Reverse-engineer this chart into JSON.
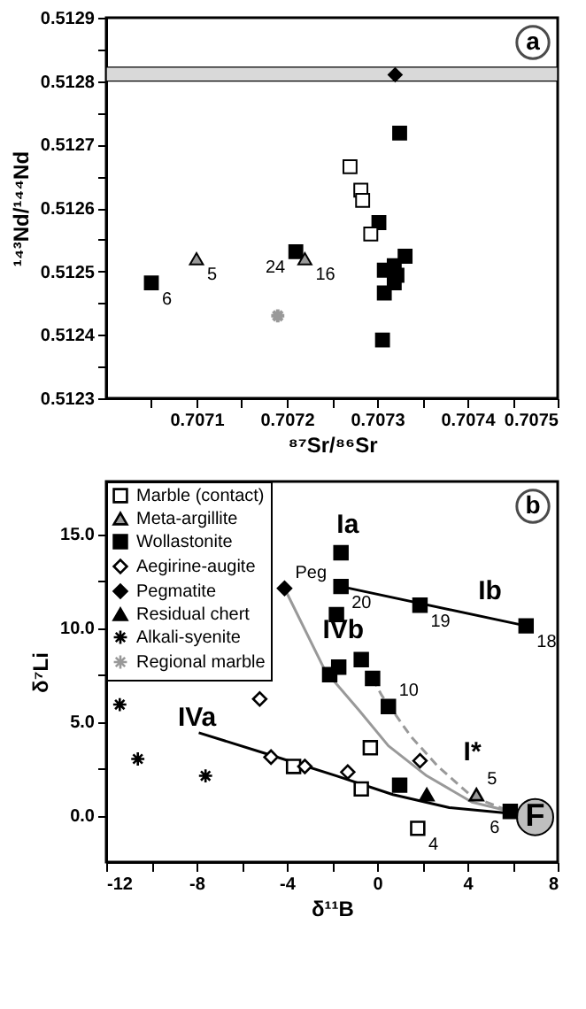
{
  "chart_data": [
    {
      "type": "scatter",
      "xlabel": "⁸⁷Sr/⁸⁶Sr",
      "ylabel": "¹⁴³Nd/¹⁴⁴Nd",
      "xlim": [
        0.707,
        0.7075
      ],
      "ylim": [
        0.5123,
        0.5129
      ],
      "xticks": [
        {
          "value": 0.70705,
          "label": null
        },
        0.7071,
        {
          "value": 0.70715,
          "label": null
        },
        0.7072,
        {
          "value": 0.70725,
          "label": null
        },
        0.7073,
        {
          "value": 0.70735,
          "label": null
        },
        0.7074,
        {
          "value": 0.70745,
          "label": null
        },
        0.7075
      ],
      "yticks": [
        0.5123,
        {
          "value": 0.51235,
          "label": null
        },
        0.5124,
        {
          "value": 0.51245,
          "label": null
        },
        0.5125,
        {
          "value": 0.51255,
          "label": null
        },
        0.5126,
        {
          "value": 0.51265,
          "label": null
        },
        0.5127,
        {
          "value": 0.51275,
          "label": null
        },
        0.5128,
        {
          "value": 0.51285,
          "label": null
        },
        0.5129
      ],
      "grid": false,
      "legend": false,
      "bands": [
        {
          "axis": "y",
          "from": 0.5128,
          "to": 0.512822,
          "color": "#d9d9d9"
        }
      ],
      "series": [
        {
          "marker": "diamond",
          "color": "#000000",
          "x": [
            0.70732
          ],
          "values": [
            0.51281
          ]
        },
        {
          "marker": "square",
          "color": "#000000",
          "x": [
            0.707325,
            0.707302,
            0.707331,
            0.707308,
            0.707319,
            0.707322,
            0.707319,
            0.707308,
            0.707306,
            0.70721,
            0.70705
          ],
          "values": [
            0.512718,
            0.512577,
            0.512524,
            0.512502,
            0.512509,
            0.512494,
            0.512482,
            0.512466,
            0.512392,
            0.512531,
            0.512482
          ]
        },
        {
          "marker": "square",
          "color": "#ffffff",
          "x": [
            0.70727,
            0.707282,
            0.707284,
            0.707293
          ],
          "values": [
            0.512665,
            0.512628,
            0.512612,
            0.512559
          ]
        },
        {
          "marker": "triangle",
          "color": "#999999",
          "x": [
            0.7071,
            0.70722
          ],
          "values": [
            0.51252,
            0.51252
          ]
        },
        {
          "marker": "cross",
          "color": "#999999",
          "x": [
            0.70719
          ],
          "values": [
            0.51243
          ]
        }
      ],
      "annotations": [
        "a",
        {
          "text": "24",
          "x": 0.70721,
          "y": 0.512531
        },
        {
          "text": "16",
          "x": 0.70722,
          "y": 0.51252
        },
        {
          "text": "5",
          "x": 0.7071,
          "y": 0.51252
        },
        {
          "text": "6",
          "x": 0.70705,
          "y": 0.512482
        }
      ]
    },
    {
      "type": "scatter",
      "xlabel": "δ¹¹B",
      "ylabel": "δ⁷Li",
      "xlim": [
        -12,
        8
      ],
      "ylim": [
        -2.5,
        17.8
      ],
      "xticks": [
        -12,
        {
          "value": -10,
          "label": null
        },
        -8,
        {
          "value": -6,
          "label": null
        },
        -4,
        {
          "value": -2,
          "label": null
        },
        0,
        {
          "value": 2,
          "label": null
        },
        4,
        {
          "value": 6,
          "label": null
        },
        8
      ],
      "yticks": [
        {
          "value": 0,
          "label": "0.0"
        },
        {
          "value": 2.5,
          "label": null
        },
        {
          "value": 5,
          "label": "5.0"
        },
        {
          "value": 7.5,
          "label": null
        },
        {
          "value": 10,
          "label": "10.0"
        },
        {
          "value": 12.5,
          "label": null
        },
        {
          "value": 15,
          "label": "15.0"
        }
      ],
      "grid": false,
      "legend": "top left",
      "series": [
        {
          "name": "Marble (contact)",
          "marker": "square",
          "color": "#ffffff",
          "x": [
            -0.3,
            -3.7,
            -0.7,
            1.8
          ],
          "values": [
            3.6,
            2.6,
            1.4,
            -0.7
          ]
        },
        {
          "name": "Meta-argillite",
          "marker": "triangle",
          "color": "#999999",
          "x": [
            4.4
          ],
          "values": [
            1.1
          ]
        },
        {
          "name": "Wollastonite",
          "marker": "square",
          "color": "#000000",
          "x": [
            -1.6,
            -1.6,
            -1.8,
            1.9,
            6.6,
            -2.1,
            -1.7,
            -0.7,
            -0.2,
            0.5,
            1.0,
            5.9
          ],
          "values": [
            14.0,
            12.2,
            10.7,
            11.2,
            10.1,
            7.5,
            7.9,
            8.3,
            7.3,
            5.8,
            1.6,
            0.2
          ]
        },
        {
          "name": "Aegirine-augite",
          "marker": "diamond",
          "color": "#ffffff",
          "x": [
            -5.2,
            -4.7,
            -3.2,
            -1.3,
            1.9
          ],
          "values": [
            6.2,
            3.1,
            2.6,
            2.3,
            2.9
          ]
        },
        {
          "name": "Pegmatite",
          "marker": "diamond",
          "color": "#000000",
          "x": [
            -4.1
          ],
          "values": [
            12.1
          ]
        },
        {
          "name": "Residual chert",
          "marker": "triangle",
          "color": "#000000",
          "x": [
            2.2
          ],
          "values": [
            1.1
          ]
        },
        {
          "name": "Alkali-syenite",
          "marker": "cross",
          "color": "#000000",
          "x": [
            -11.4,
            -10.6,
            -7.6
          ],
          "values": [
            5.9,
            3.0,
            2.1
          ]
        },
        {
          "name": "Regional marble",
          "marker": "cross",
          "color": "#999999"
        },
        {
          "name": "F",
          "marker": "circle",
          "color": "#bfbfbf",
          "x": [
            7.0
          ],
          "values": [
            -0.1
          ]
        },
        {
          "type": "line",
          "color": "#000000",
          "x": [
            -1.6,
            6.6
          ],
          "values": [
            12.2,
            10.1
          ]
        },
        {
          "type": "line",
          "color": "#000000",
          "x": [
            -7.9,
            -4.7,
            -1.8,
            0.7,
            3.2,
            5.9
          ],
          "values": [
            4.4,
            3.2,
            2.1,
            1.1,
            0.4,
            0.1
          ]
        },
        {
          "type": "line",
          "color": "#999999",
          "x": [
            -4.1,
            -2.3,
            -0.8,
            0.5,
            2.2,
            4.2,
            5.9
          ],
          "values": [
            12.1,
            7.7,
            5.6,
            3.7,
            2.1,
            0.7,
            0.2
          ]
        },
        {
          "type": "line",
          "line_style": "dashed",
          "color": "#999999",
          "x": [
            -0.2,
            0.2,
            1.5,
            2.7,
            4.2,
            5.9
          ],
          "values": [
            7.3,
            6.4,
            4.2,
            2.6,
            1.0,
            0.2
          ]
        }
      ],
      "annotations": [
        "b",
        {
          "text": "Ia",
          "x": -1.3,
          "y": 14.0
        },
        {
          "text": "Ib",
          "x": 5.0,
          "y": 10.5
        },
        {
          "text": "IVb",
          "x": -3.2,
          "y": 9.9
        },
        {
          "text": "IVa",
          "x": -6.5,
          "y": 3.9
        },
        {
          "text": "I*",
          "x": 3.2,
          "y": 2.1
        },
        {
          "text": "20",
          "x": -1.6,
          "y": 12.2
        },
        {
          "text": "19",
          "x": 1.9,
          "y": 11.2
        },
        {
          "text": "18",
          "x": 6.6,
          "y": 10.1
        },
        {
          "text": "Peg",
          "x": -4.1,
          "y": 12.1
        },
        {
          "text": "10",
          "x": 0.5,
          "y": 5.8
        },
        {
          "text": "4",
          "x": 1.8,
          "y": -0.7
        },
        {
          "text": "6",
          "x": 5.9,
          "y": 0.2
        },
        {
          "text": "5",
          "x": 4.4,
          "y": 1.1
        }
      ]
    }
  ]
}
